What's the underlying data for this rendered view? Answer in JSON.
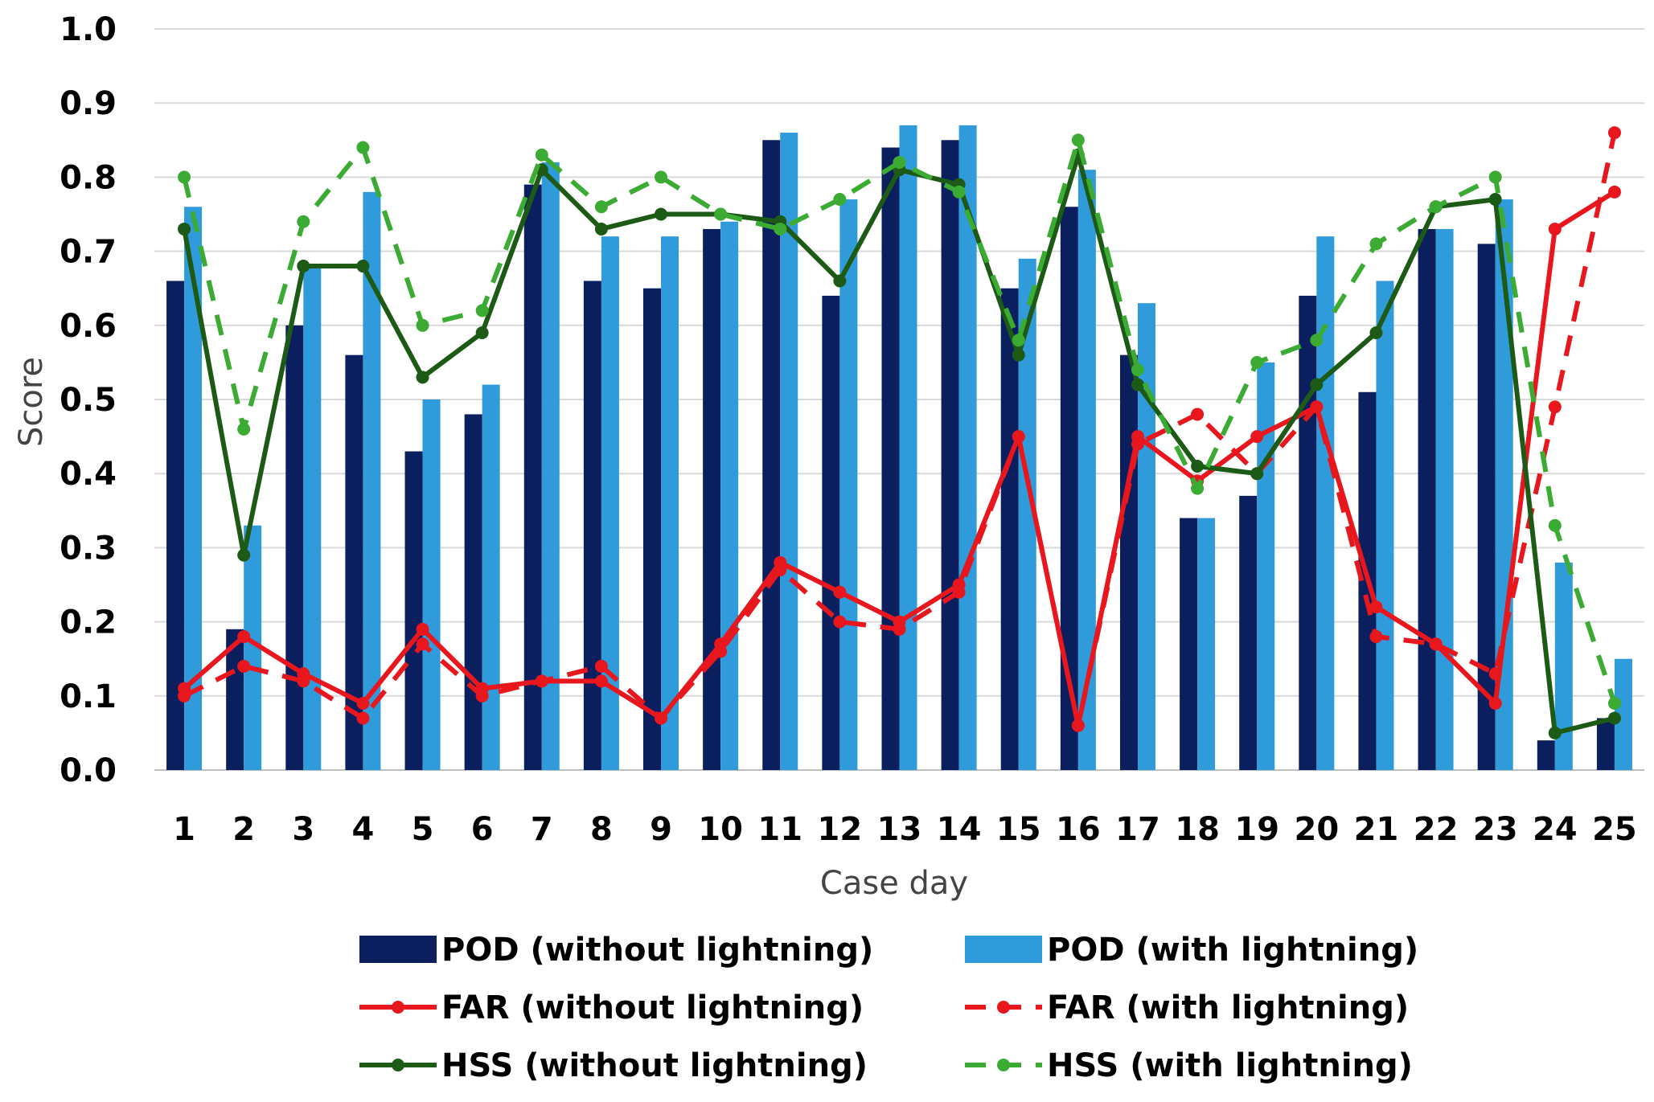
{
  "chart_data": {
    "type": "bar",
    "title": "",
    "xlabel": "Case day",
    "ylabel": "Score",
    "ylim": [
      0,
      1.0
    ],
    "yticks": [
      "0.0",
      "0.1",
      "0.2",
      "0.3",
      "0.4",
      "0.5",
      "0.6",
      "0.7",
      "0.8",
      "0.9",
      "1.0"
    ],
    "grid": true,
    "legend_position": "bottom",
    "categories": [
      "1",
      "2",
      "3",
      "4",
      "5",
      "6",
      "7",
      "8",
      "9",
      "10",
      "11",
      "12",
      "13",
      "14",
      "15",
      "16",
      "17",
      "18",
      "19",
      "20",
      "21",
      "22",
      "23",
      "24",
      "25"
    ],
    "bar_series": [
      {
        "name": "POD (without lightning)",
        "color": "#0b1f5e",
        "values": [
          0.66,
          0.19,
          0.6,
          0.56,
          0.43,
          0.48,
          0.79,
          0.66,
          0.65,
          0.73,
          0.85,
          0.64,
          0.84,
          0.85,
          0.65,
          0.76,
          0.56,
          0.34,
          0.37,
          0.64,
          0.51,
          0.73,
          0.71,
          0.04,
          0.07
        ]
      },
      {
        "name": "POD (with lightning)",
        "color": "#2f9bdb",
        "values": [
          0.76,
          0.33,
          0.68,
          0.78,
          0.5,
          0.52,
          0.82,
          0.72,
          0.72,
          0.74,
          0.86,
          0.77,
          0.87,
          0.87,
          0.69,
          0.81,
          0.63,
          0.34,
          0.55,
          0.72,
          0.66,
          0.73,
          0.77,
          0.28,
          0.15
        ]
      }
    ],
    "line_series": [
      {
        "name": "FAR (without lightning)",
        "color": "#e8161d",
        "dashed": false,
        "values": [
          0.11,
          0.18,
          0.13,
          0.09,
          0.19,
          0.11,
          0.12,
          0.12,
          0.07,
          0.17,
          0.28,
          0.24,
          0.2,
          0.25,
          0.45,
          0.06,
          0.45,
          0.39,
          0.45,
          0.49,
          0.22,
          0.17,
          0.09,
          0.73,
          0.78
        ]
      },
      {
        "name": "FAR (with lightning)",
        "color": "#e8161d",
        "dashed": true,
        "values": [
          0.1,
          0.14,
          0.12,
          0.07,
          0.17,
          0.1,
          0.12,
          0.14,
          0.07,
          0.16,
          0.27,
          0.2,
          0.19,
          0.24,
          0.45,
          0.06,
          0.44,
          0.48,
          0.4,
          0.49,
          0.18,
          0.17,
          0.13,
          0.49,
          0.86
        ]
      },
      {
        "name": "HSS (without lightning)",
        "color": "#1c5a16",
        "dashed": false,
        "values": [
          0.73,
          0.29,
          0.68,
          0.68,
          0.53,
          0.59,
          0.81,
          0.73,
          0.75,
          0.75,
          0.74,
          0.66,
          0.81,
          0.79,
          0.56,
          0.83,
          0.52,
          0.41,
          0.4,
          0.52,
          0.59,
          0.76,
          0.77,
          0.05,
          0.07
        ]
      },
      {
        "name": "HSS (with lightning)",
        "color": "#3cab34",
        "dashed": true,
        "values": [
          0.8,
          0.46,
          0.74,
          0.84,
          0.6,
          0.62,
          0.83,
          0.76,
          0.8,
          0.75,
          0.73,
          0.77,
          0.82,
          0.78,
          0.58,
          0.85,
          0.54,
          0.38,
          0.55,
          0.58,
          0.71,
          0.76,
          0.8,
          0.33,
          0.09
        ]
      }
    ]
  }
}
